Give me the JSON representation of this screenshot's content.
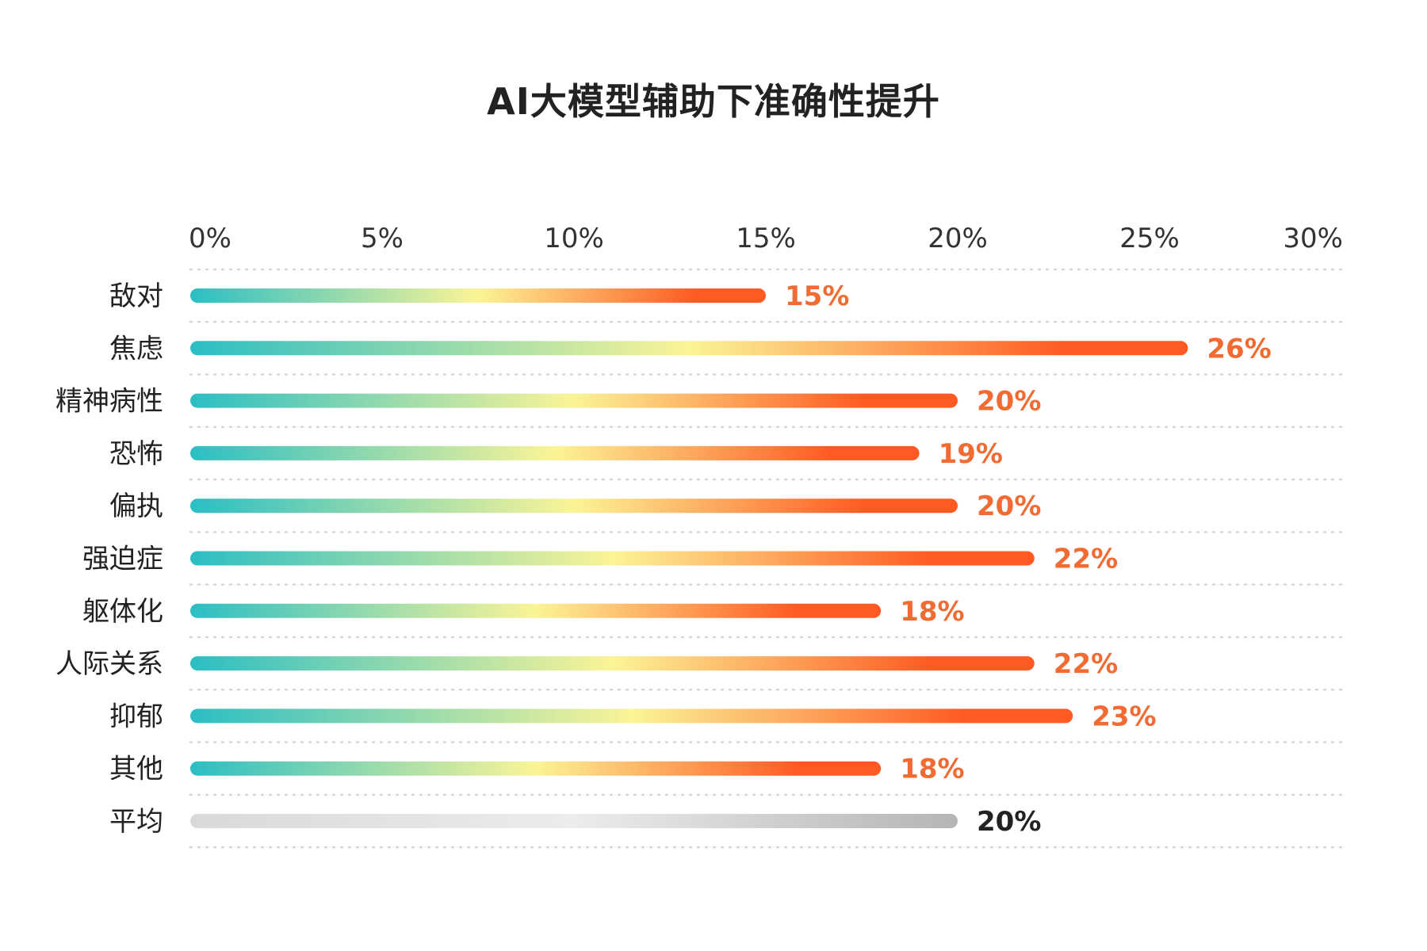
{
  "chart_data": {
    "type": "bar",
    "orientation": "horizontal",
    "title": "AI大模型辅助下准确性提升",
    "xlabel": "",
    "ylabel": "",
    "xlim": [
      0,
      30
    ],
    "ticks": [
      0,
      5,
      10,
      15,
      20,
      25,
      30
    ],
    "tick_labels": [
      "0%",
      "5%",
      "10%",
      "15%",
      "20%",
      "25%",
      "30%"
    ],
    "tick_position": "top",
    "grid": true,
    "categories": [
      "敌对",
      "焦虑",
      "精神病性",
      "恐怖",
      "偏执",
      "强迫症",
      "躯体化",
      "人际关系",
      "抑郁",
      "其他",
      "平均"
    ],
    "values": [
      15,
      26,
      20,
      19,
      20,
      22,
      18,
      22,
      23,
      18,
      20
    ],
    "value_labels": [
      "15%",
      "26%",
      "20%",
      "19%",
      "20%",
      "22%",
      "18%",
      "22%",
      "23%",
      "18%",
      "20%"
    ],
    "highlight_category": "平均",
    "colors": {
      "gradient_start": "#2bbec4",
      "gradient_mid": "#fbf497",
      "gradient_end": "#ff5a22",
      "value_text": "#f26b32",
      "average_start": "#d9d9d9",
      "average_mid": "#ececec",
      "average_end": "#b5b5b5",
      "average_text": "#222222",
      "grid": "#d6d6d6"
    }
  }
}
